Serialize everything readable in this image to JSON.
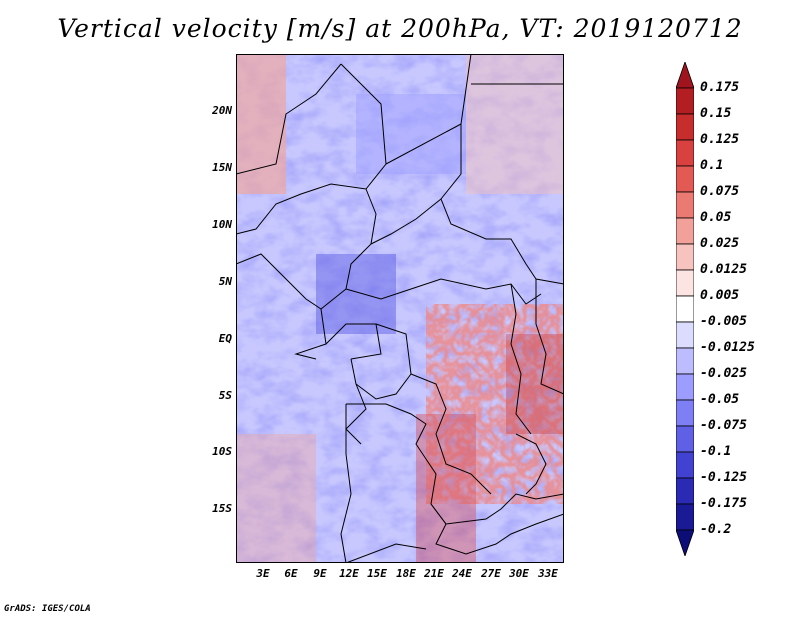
{
  "title": "Vertical velocity [m/s] at 200hPa, VT: 2019120712",
  "credit": "GrADS: IGES/COLA",
  "map": {
    "lat_labels": [
      "20N",
      "15N",
      "10N",
      "5N",
      "EQ",
      "5S",
      "10S",
      "15S"
    ],
    "lon_labels": [
      "3E",
      "6E",
      "9E",
      "12E",
      "15E",
      "18E",
      "21E",
      "24E",
      "27E",
      "30E",
      "33E"
    ]
  },
  "colorbar": {
    "labels": [
      "0.175",
      "0.15",
      "0.125",
      "0.1",
      "0.075",
      "0.05",
      "0.025",
      "0.0125",
      "0.005",
      "-0.005",
      "-0.0125",
      "-0.025",
      "-0.05",
      "-0.075",
      "-0.1",
      "-0.125",
      "-0.175",
      "-0.2"
    ],
    "colors": [
      "#a0141e",
      "#b31e23",
      "#c82d2d",
      "#d94040",
      "#e35a55",
      "#ea7a72",
      "#f1a09a",
      "#f7c3bf",
      "#fce4e2",
      "#ffffff",
      "#dcdcff",
      "#bcbcff",
      "#9d9dff",
      "#7f7ff5",
      "#6060e6",
      "#4242d2",
      "#2a2ab4",
      "#1a1a96",
      "#0d0d78"
    ]
  }
}
